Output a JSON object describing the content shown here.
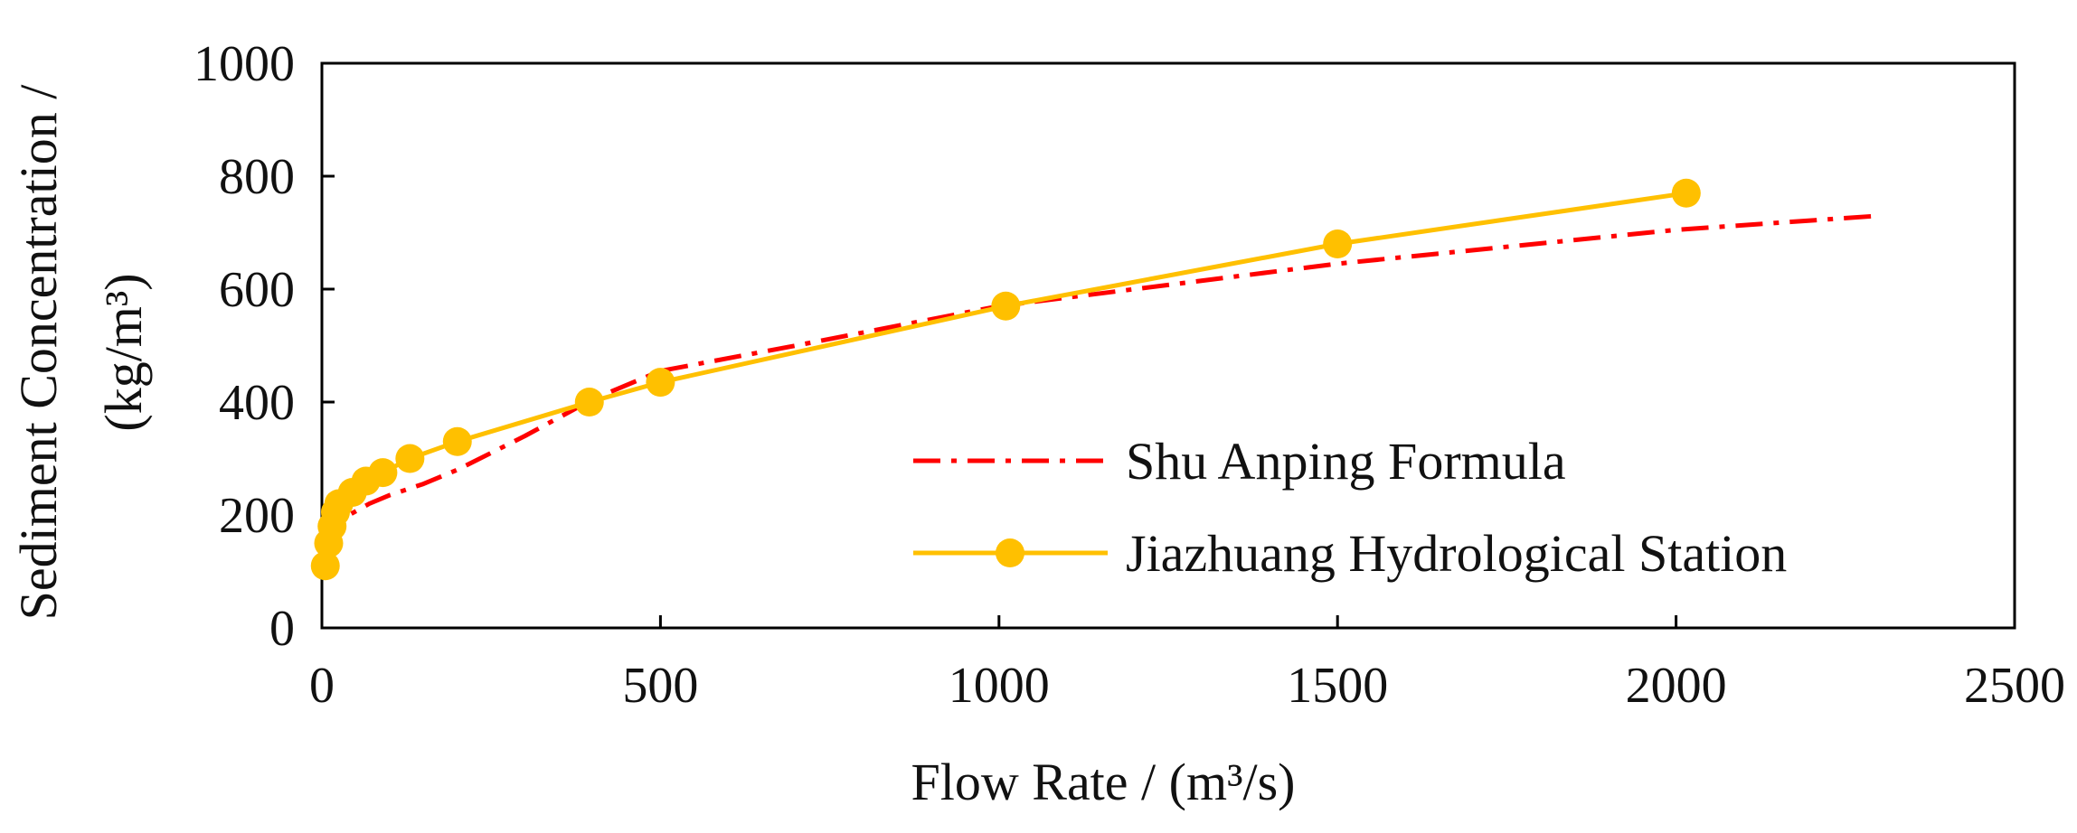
{
  "chart_data": {
    "type": "line",
    "title": "",
    "xlabel": "Flow Rate / (m³/s)",
    "ylabel_lines": [
      "Sediment Concentration /",
      "(kg/m³)"
    ],
    "xlim": [
      0,
      2500
    ],
    "ylim": [
      0,
      1000
    ],
    "xticks": [
      0,
      500,
      1000,
      1500,
      2000,
      2500
    ],
    "yticks": [
      0,
      200,
      400,
      600,
      800,
      1000
    ],
    "grid": false,
    "legend_position": "bottom-right",
    "series": [
      {
        "name": "Shu Anping Formula",
        "style": "dash-dot",
        "color": "#ff0000",
        "markers": false,
        "x": [
          10,
          20,
          40,
          70,
          100,
          150,
          200,
          300,
          400,
          500,
          700,
          1000,
          1500,
          2000,
          2300
        ],
        "y": [
          150,
          175,
          200,
          220,
          235,
          255,
          280,
          340,
          405,
          455,
          500,
          570,
          645,
          705,
          730
        ]
      },
      {
        "name": "Jiazhuang Hydrological Station",
        "style": "solid",
        "color": "#ffc000",
        "markers": true,
        "x": [
          5,
          10,
          15,
          20,
          25,
          45,
          65,
          90,
          130,
          200,
          395,
          500,
          1010,
          1500,
          2015
        ],
        "y": [
          110,
          150,
          180,
          205,
          220,
          240,
          260,
          275,
          300,
          330,
          400,
          435,
          570,
          680,
          770
        ]
      }
    ]
  }
}
